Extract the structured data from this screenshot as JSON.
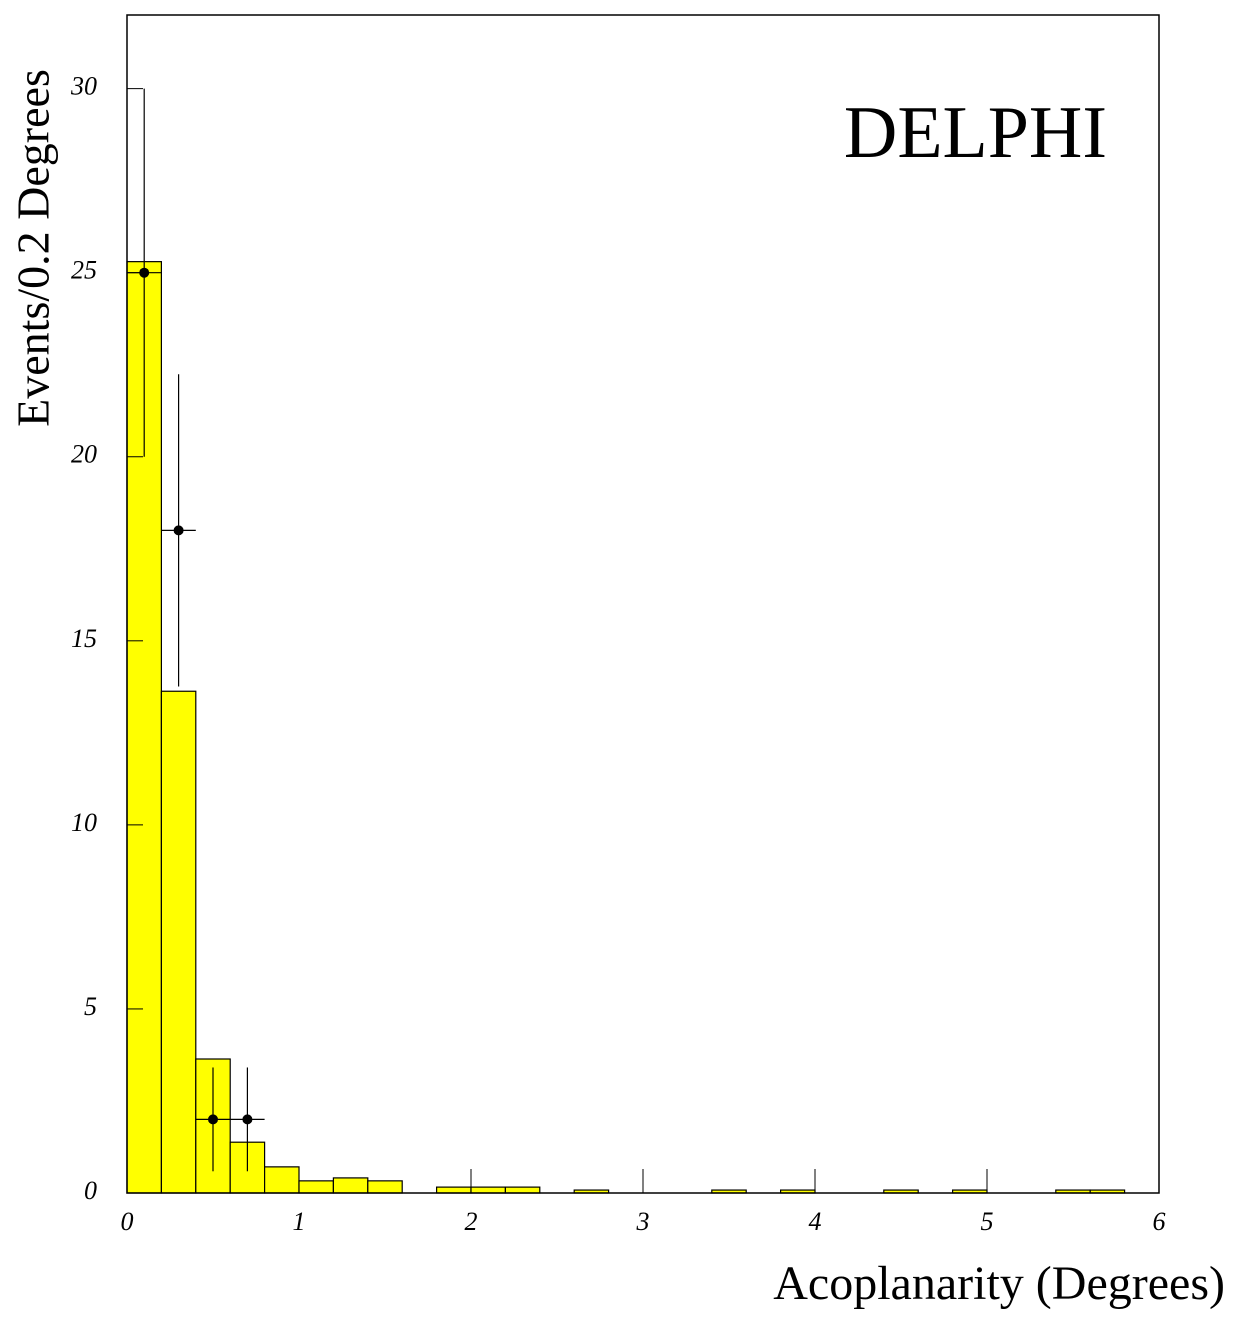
{
  "chart_data": {
    "type": "histogram",
    "annotation": "DELPHI",
    "xlabel": "Acoplanarity (Degrees)",
    "ylabel": "Events/0.2 Degrees",
    "bins": [
      0,
      0.2,
      0.4,
      0.6,
      0.8,
      1.0,
      1.2,
      1.4,
      1.6,
      1.8,
      2.0,
      2.2,
      2.4,
      2.6,
      2.8,
      3.0,
      3.2,
      3.4,
      3.6,
      3.8,
      4.0,
      4.2,
      4.4,
      4.6,
      4.8,
      5.0,
      5.2,
      5.4,
      5.6,
      5.8,
      6.0
    ],
    "counts": [
      25.3,
      13.63,
      3.64,
      1.38,
      0.71,
      0.33,
      0.41,
      0.33,
      0,
      0.16,
      0.16,
      0.16,
      0,
      0.08,
      0,
      0,
      0,
      0.08,
      0,
      0.08,
      0,
      0,
      0.08,
      0,
      0.08,
      0,
      0,
      0.08,
      0.08,
      0
    ],
    "color": "#ffff00",
    "points": {
      "x": [
        0.1,
        0.3,
        0.5,
        0.7
      ],
      "values": [
        25,
        18,
        2,
        2
      ],
      "errors": [
        5,
        4.24,
        1.41,
        1.41
      ],
      "xerr": [
        0.1,
        0.1,
        0.1,
        0.1
      ]
    },
    "xlim": [
      0,
      6
    ],
    "ylim": [
      0,
      32
    ],
    "xticks": [
      0,
      1,
      2,
      3,
      4,
      5,
      6
    ],
    "yticks": [
      0,
      5,
      10,
      15,
      20,
      25,
      30
    ]
  }
}
